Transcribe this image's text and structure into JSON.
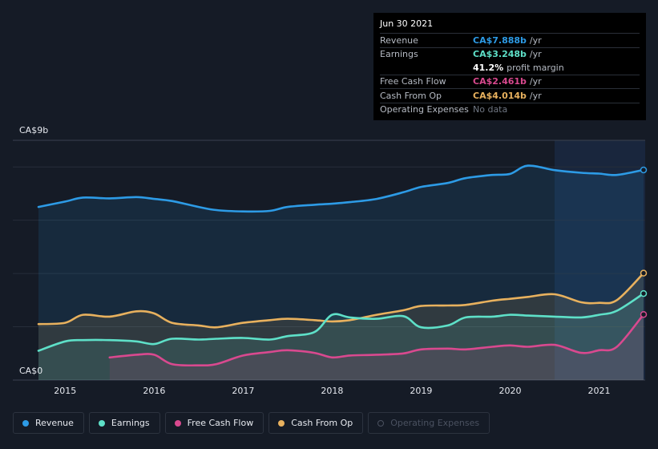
{
  "tooltip": {
    "date": "Jun 30 2021",
    "rows": [
      {
        "label": "Revenue",
        "value": "CA$7.888b",
        "unit": "/yr",
        "color": "#2d9be6"
      },
      {
        "label": "Earnings",
        "value": "CA$3.248b",
        "unit": "/yr",
        "color": "#5ee0c8"
      },
      {
        "label": "",
        "value": "41.2%",
        "unit": "profit margin",
        "color": "#ffffff"
      },
      {
        "label": "Free Cash Flow",
        "value": "CA$2.461b",
        "unit": "/yr",
        "color": "#d9498f"
      },
      {
        "label": "Cash From Op",
        "value": "CA$4.014b",
        "unit": "/yr",
        "color": "#e8b15e"
      },
      {
        "label": "Operating Expenses",
        "value": "No data",
        "unit": "",
        "color": "#6f7682"
      }
    ]
  },
  "legend": [
    {
      "label": "Revenue",
      "color": "#2d9be6",
      "active": true
    },
    {
      "label": "Earnings",
      "color": "#5ee0c8",
      "active": true
    },
    {
      "label": "Free Cash Flow",
      "color": "#d9498f",
      "active": true
    },
    {
      "label": "Cash From Op",
      "color": "#e8b15e",
      "active": true
    },
    {
      "label": "Operating Expenses",
      "color": "#4a5160",
      "active": false
    }
  ],
  "chart_data": {
    "type": "line",
    "ylabel_top": "CA$9b",
    "ylabel_bottom": "CA$0",
    "ylim": [
      0,
      9
    ],
    "xlim": [
      2014.7,
      2021.5
    ],
    "forecast_region_start": 2020.5,
    "xticks": [
      2015,
      2016,
      2017,
      2018,
      2019,
      2020,
      2021
    ],
    "series": [
      {
        "name": "Revenue",
        "color": "#2d9be6",
        "points": [
          [
            2014.7,
            6.5
          ],
          [
            2015.0,
            6.7
          ],
          [
            2015.2,
            6.85
          ],
          [
            2015.5,
            6.82
          ],
          [
            2015.8,
            6.87
          ],
          [
            2016.0,
            6.8
          ],
          [
            2016.2,
            6.72
          ],
          [
            2016.5,
            6.5
          ],
          [
            2016.7,
            6.38
          ],
          [
            2017.0,
            6.33
          ],
          [
            2017.3,
            6.35
          ],
          [
            2017.5,
            6.5
          ],
          [
            2017.8,
            6.58
          ],
          [
            2018.0,
            6.62
          ],
          [
            2018.2,
            6.68
          ],
          [
            2018.5,
            6.8
          ],
          [
            2018.8,
            7.05
          ],
          [
            2019.0,
            7.25
          ],
          [
            2019.3,
            7.4
          ],
          [
            2019.5,
            7.58
          ],
          [
            2019.8,
            7.7
          ],
          [
            2020.0,
            7.74
          ],
          [
            2020.2,
            8.05
          ],
          [
            2020.5,
            7.88
          ],
          [
            2020.8,
            7.78
          ],
          [
            2021.0,
            7.75
          ],
          [
            2021.2,
            7.7
          ],
          [
            2021.5,
            7.888
          ]
        ]
      },
      {
        "name": "Cash From Op",
        "color": "#e8b15e",
        "points": [
          [
            2014.7,
            2.1
          ],
          [
            2015.0,
            2.15
          ],
          [
            2015.2,
            2.45
          ],
          [
            2015.5,
            2.38
          ],
          [
            2015.8,
            2.58
          ],
          [
            2016.0,
            2.5
          ],
          [
            2016.2,
            2.15
          ],
          [
            2016.5,
            2.05
          ],
          [
            2016.7,
            1.98
          ],
          [
            2017.0,
            2.15
          ],
          [
            2017.3,
            2.25
          ],
          [
            2017.5,
            2.3
          ],
          [
            2017.8,
            2.25
          ],
          [
            2018.0,
            2.2
          ],
          [
            2018.2,
            2.25
          ],
          [
            2018.5,
            2.45
          ],
          [
            2018.8,
            2.62
          ],
          [
            2019.0,
            2.78
          ],
          [
            2019.3,
            2.8
          ],
          [
            2019.5,
            2.82
          ],
          [
            2019.8,
            2.98
          ],
          [
            2020.0,
            3.05
          ],
          [
            2020.2,
            3.12
          ],
          [
            2020.5,
            3.22
          ],
          [
            2020.8,
            2.92
          ],
          [
            2021.0,
            2.9
          ],
          [
            2021.2,
            3.0
          ],
          [
            2021.5,
            4.014
          ]
        ]
      },
      {
        "name": "Earnings",
        "color": "#5ee0c8",
        "points": [
          [
            2014.7,
            1.1
          ],
          [
            2015.0,
            1.45
          ],
          [
            2015.2,
            1.5
          ],
          [
            2015.5,
            1.5
          ],
          [
            2015.8,
            1.45
          ],
          [
            2016.0,
            1.35
          ],
          [
            2016.2,
            1.55
          ],
          [
            2016.5,
            1.52
          ],
          [
            2016.7,
            1.55
          ],
          [
            2017.0,
            1.58
          ],
          [
            2017.3,
            1.52
          ],
          [
            2017.5,
            1.65
          ],
          [
            2017.8,
            1.8
          ],
          [
            2018.0,
            2.45
          ],
          [
            2018.2,
            2.35
          ],
          [
            2018.5,
            2.3
          ],
          [
            2018.8,
            2.4
          ],
          [
            2019.0,
            1.98
          ],
          [
            2019.3,
            2.05
          ],
          [
            2019.5,
            2.35
          ],
          [
            2019.8,
            2.38
          ],
          [
            2020.0,
            2.45
          ],
          [
            2020.2,
            2.42
          ],
          [
            2020.5,
            2.38
          ],
          [
            2020.8,
            2.35
          ],
          [
            2021.0,
            2.45
          ],
          [
            2021.2,
            2.6
          ],
          [
            2021.5,
            3.248
          ]
        ]
      },
      {
        "name": "Free Cash Flow",
        "color": "#d9498f",
        "points": [
          [
            2015.5,
            0.85
          ],
          [
            2015.8,
            0.95
          ],
          [
            2016.0,
            0.95
          ],
          [
            2016.2,
            0.6
          ],
          [
            2016.5,
            0.55
          ],
          [
            2016.7,
            0.6
          ],
          [
            2017.0,
            0.92
          ],
          [
            2017.3,
            1.05
          ],
          [
            2017.5,
            1.12
          ],
          [
            2017.8,
            1.02
          ],
          [
            2018.0,
            0.85
          ],
          [
            2018.2,
            0.92
          ],
          [
            2018.5,
            0.95
          ],
          [
            2018.8,
            1.0
          ],
          [
            2019.0,
            1.15
          ],
          [
            2019.3,
            1.18
          ],
          [
            2019.5,
            1.15
          ],
          [
            2019.8,
            1.25
          ],
          [
            2020.0,
            1.3
          ],
          [
            2020.2,
            1.25
          ],
          [
            2020.5,
            1.32
          ],
          [
            2020.8,
            1.02
          ],
          [
            2021.0,
            1.12
          ],
          [
            2021.2,
            1.25
          ],
          [
            2021.5,
            2.461
          ]
        ]
      }
    ]
  }
}
